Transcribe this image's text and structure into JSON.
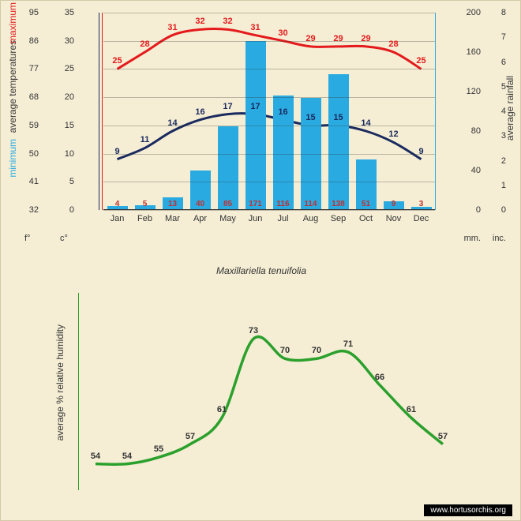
{
  "species": "Maxillariella tenuifolia",
  "watermark": "www.hortusorchis.org",
  "months": [
    "Jan",
    "Feb",
    "Mar",
    "Apr",
    "May",
    "Jun",
    "Jul",
    "Aug",
    "Sep",
    "Oct",
    "Nov",
    "Dec"
  ],
  "units": {
    "f": "f°",
    "c": "c°",
    "mm": "mm.",
    "in": "inc."
  },
  "axis_labels": {
    "minimum": "minimum",
    "avgtemp": "average  temperatures",
    "maximum": "maximum",
    "rainfall": "average rainfall",
    "humidity": "average %  relative humidity"
  },
  "colors": {
    "background": "#f5eed5",
    "bar": "#29abe2",
    "max_line": "#e41a1c",
    "min_line": "#1a2a5e",
    "humidity_line": "#2ca02c",
    "rainfall_axis": "#29abe2",
    "bar_value_text": "#c03030"
  },
  "temp_chart": {
    "y_f": [
      32,
      41,
      50,
      59,
      68,
      77,
      86,
      95
    ],
    "y_c": [
      0,
      5,
      10,
      15,
      20,
      25,
      30,
      35
    ],
    "y_mm": [
      0,
      40,
      80,
      120,
      160,
      200
    ],
    "y_in": [
      0,
      1,
      2,
      3,
      4,
      5,
      6,
      7,
      8
    ],
    "c_range": [
      0,
      35
    ],
    "mm_range": [
      0,
      200
    ],
    "max_temps": [
      25,
      28,
      31,
      32,
      32,
      31,
      30,
      29,
      29,
      29,
      28,
      25
    ],
    "min_temps": [
      9,
      11,
      14,
      16,
      17,
      17,
      16,
      15,
      15,
      14,
      12,
      9
    ],
    "rainfall_mm": [
      4,
      5,
      13,
      40,
      85,
      171,
      116,
      114,
      138,
      51,
      9,
      3
    ]
  },
  "humidity_chart": {
    "values": [
      54,
      54,
      55,
      57,
      61,
      73,
      70,
      70,
      71,
      66,
      61,
      57
    ],
    "range": [
      50,
      80
    ]
  }
}
